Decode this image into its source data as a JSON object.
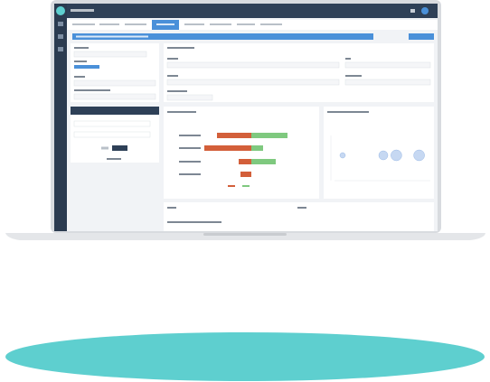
{
  "diverging_bars": {
    "left": [
      38,
      52,
      14,
      12
    ],
    "right": [
      40,
      13,
      27,
      0
    ]
  },
  "bubbles": {
    "x": [
      5,
      30,
      38,
      52
    ],
    "y": [
      1,
      1,
      1,
      1
    ],
    "size": [
      3,
      5,
      6,
      6
    ]
  }
}
